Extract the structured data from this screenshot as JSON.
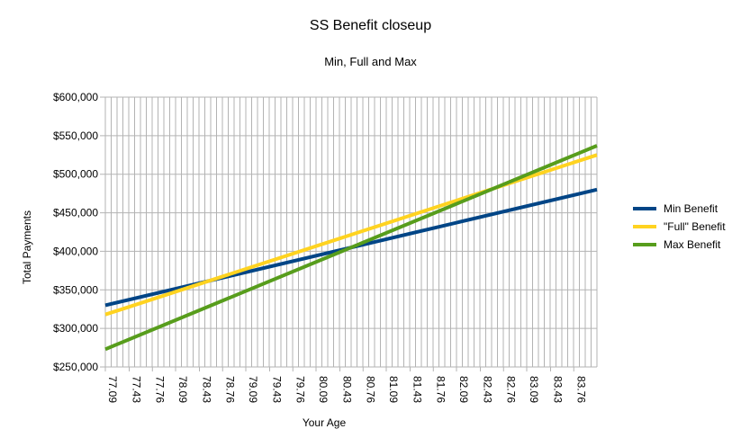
{
  "chart_data": {
    "type": "line",
    "title": "SS Benefit closeup",
    "subtitle": "Min, Full and Max",
    "xlabel": "Your Age",
    "ylabel": "Total Payments",
    "x_ticks": [
      "77.09",
      "77.43",
      "77.76",
      "78.09",
      "78.43",
      "78.76",
      "79.09",
      "79.43",
      "79.76",
      "80.09",
      "80.43",
      "80.76",
      "81.09",
      "81.43",
      "81.76",
      "82.09",
      "82.43",
      "82.76",
      "83.09",
      "83.43",
      "83.76"
    ],
    "xlim": [
      77.09,
      84.09
    ],
    "ylim": [
      250000,
      600000
    ],
    "y_ticks": [
      "$250,000",
      "$300,000",
      "$350,000",
      "$400,000",
      "$450,000",
      "$500,000",
      "$550,000",
      "$600,000"
    ],
    "y_tick_values": [
      250000,
      300000,
      350000,
      400000,
      450000,
      500000,
      550000,
      600000
    ],
    "grid": true,
    "legend_position": "right",
    "series": [
      {
        "name": "Min Benefit",
        "color": "#004586",
        "x": [
          77.09,
          84.09
        ],
        "values": [
          330000,
          480000
        ]
      },
      {
        "name": "\"Full\" Benefit",
        "color": "#ffd320",
        "x": [
          77.09,
          84.09
        ],
        "values": [
          318000,
          525000
        ]
      },
      {
        "name": "Max Benefit",
        "color": "#579d1c",
        "x": [
          77.09,
          84.09
        ],
        "values": [
          273000,
          537000
        ]
      }
    ]
  }
}
